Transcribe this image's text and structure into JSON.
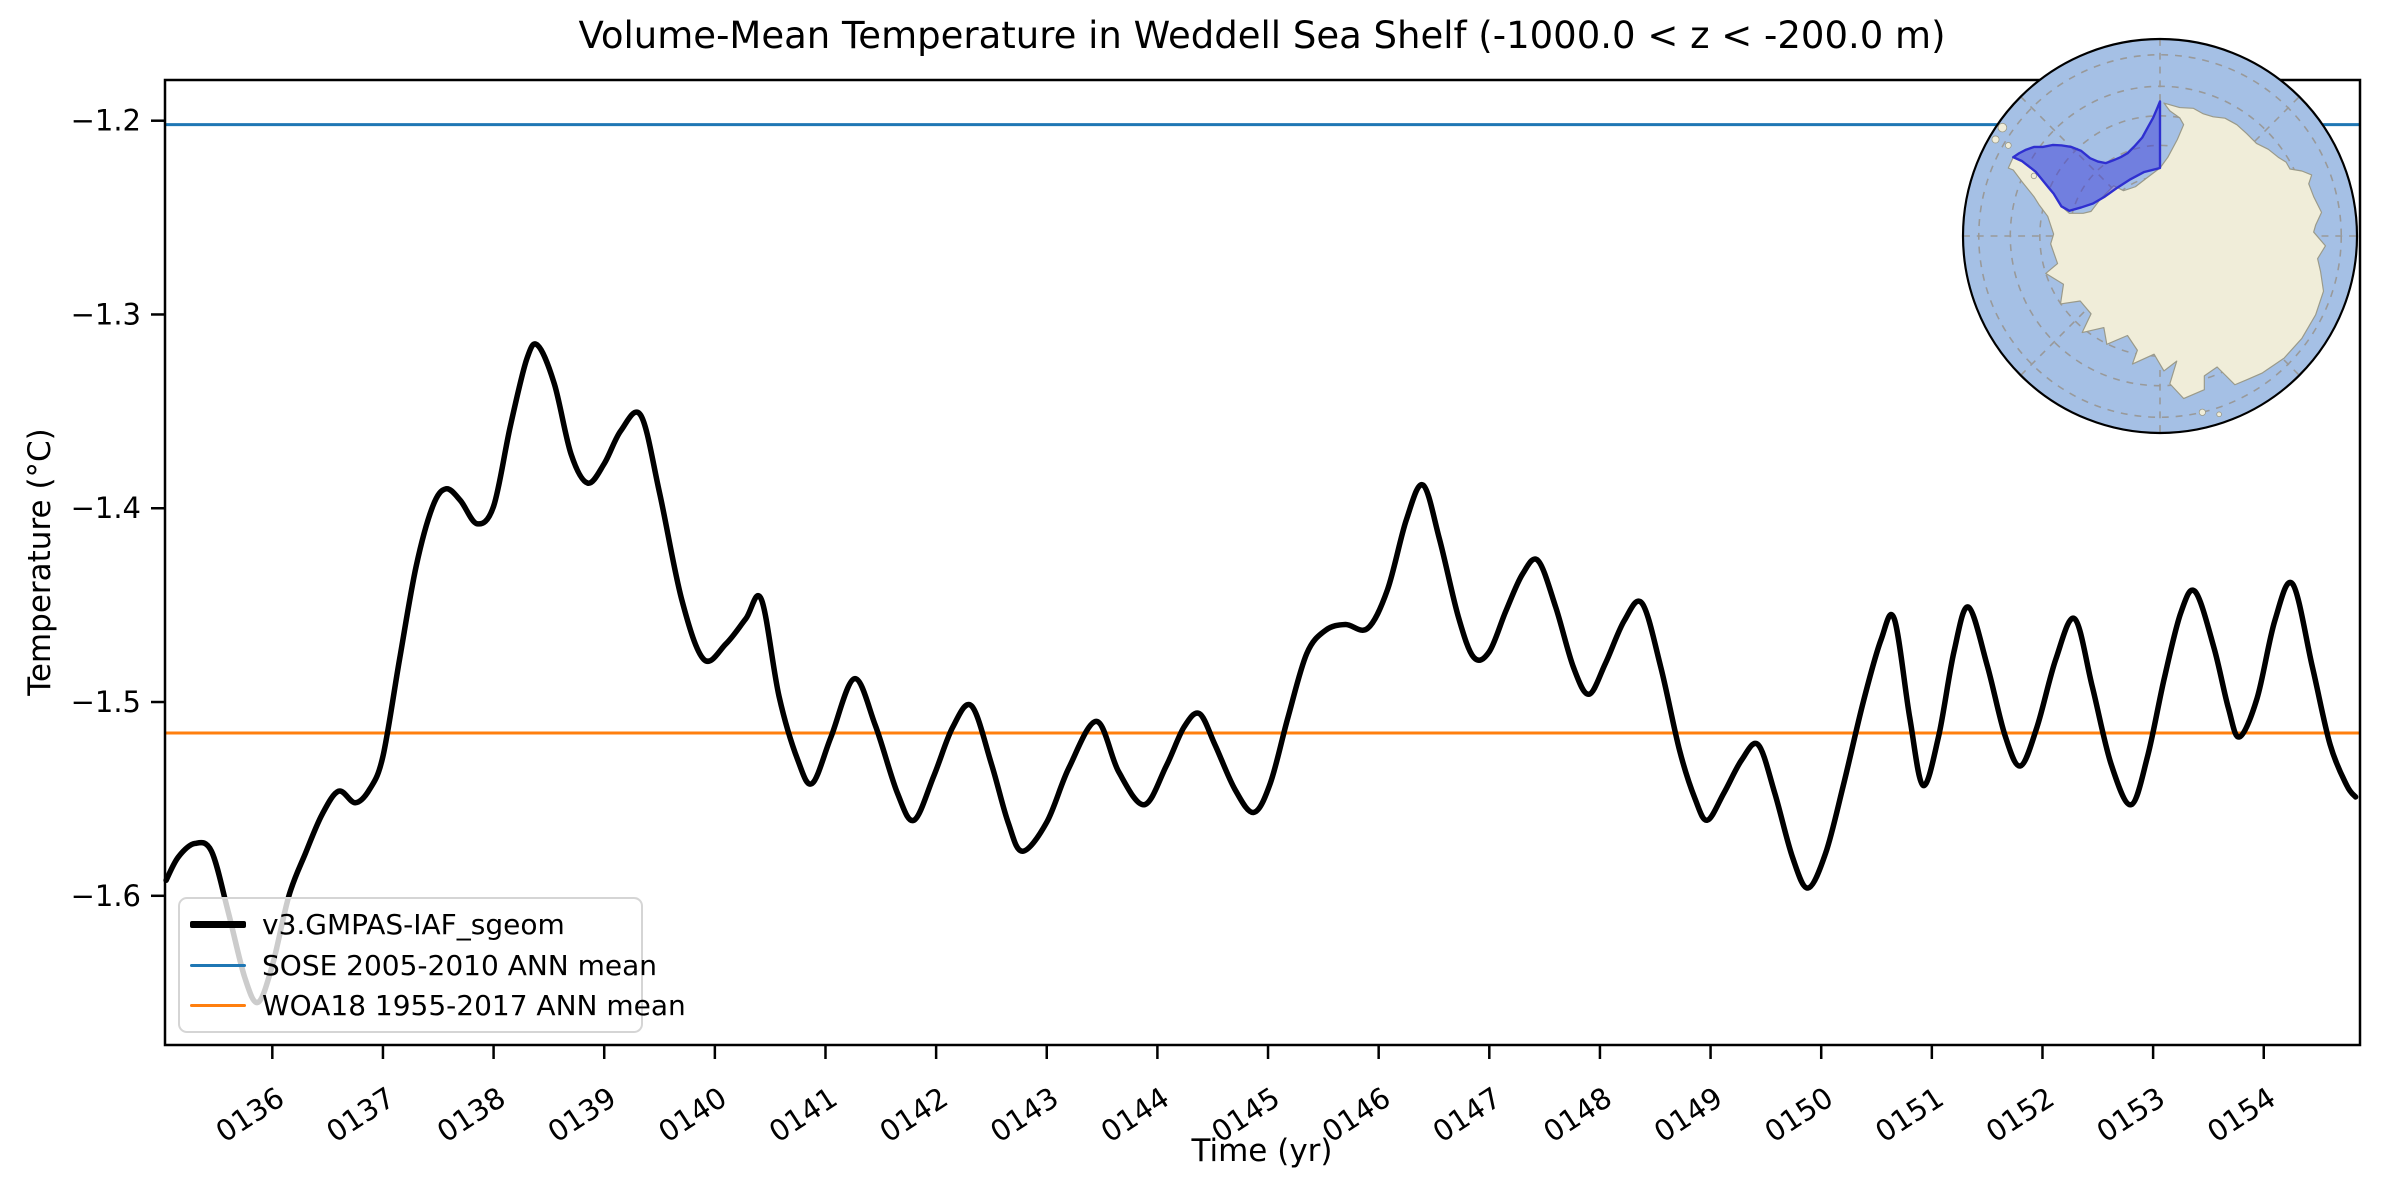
{
  "title": "Volume-Mean Temperature in Weddell Sea Shelf (-1000.0 < z < -200.0 m)",
  "axes": {
    "x": {
      "label": "Time (yr)",
      "tick_labels": [
        "0136",
        "0137",
        "0138",
        "0139",
        "0140",
        "0141",
        "0142",
        "0143",
        "0144",
        "0145",
        "0146",
        "0147",
        "0148",
        "0149",
        "0150",
        "0151",
        "0152",
        "0153",
        "0154"
      ],
      "tick_values": [
        136,
        137,
        138,
        139,
        140,
        141,
        142,
        143,
        144,
        145,
        146,
        147,
        148,
        149,
        150,
        151,
        152,
        153,
        154
      ]
    },
    "y": {
      "label": "Temperature (°C)",
      "tick_labels": [
        "−1.2",
        "−1.3",
        "−1.4",
        "−1.5",
        "−1.6"
      ],
      "tick_values": [
        -1.2,
        -1.3,
        -1.4,
        -1.5,
        -1.6
      ]
    }
  },
  "legend": {
    "items": [
      {
        "label": "v3.GMPAS-IAF_sgeom",
        "color": "#000000",
        "thickness": 7
      },
      {
        "label": "SOSE 2005-2010 ANN mean",
        "color": "#1f77b4",
        "thickness": 3
      },
      {
        "label": "WOA18 1955-2017 ANN mean",
        "color": "#ff7f0e",
        "thickness": 3
      }
    ]
  },
  "chart_data": {
    "type": "line",
    "title": "Volume-Mean Temperature in Weddell Sea Shelf (-1000.0 < z < -200.0 m)",
    "xlabel": "Time (yr)",
    "ylabel": "Temperature (°C)",
    "xlim": [
      135.03,
      154.87
    ],
    "ylim": [
      -1.677,
      -1.179
    ],
    "grid": false,
    "legend_position": "lower left",
    "series": [
      {
        "name": "v3.GMPAS-IAF_sgeom",
        "color": "#000000",
        "style": "curve",
        "points": [
          [
            135.04,
            -1.592
          ],
          [
            135.15,
            -1.58
          ],
          [
            135.3,
            -1.573
          ],
          [
            135.45,
            -1.577
          ],
          [
            135.6,
            -1.608
          ],
          [
            135.75,
            -1.642
          ],
          [
            135.87,
            -1.655
          ],
          [
            136.0,
            -1.636
          ],
          [
            136.15,
            -1.6
          ],
          [
            136.3,
            -1.578
          ],
          [
            136.45,
            -1.558
          ],
          [
            136.6,
            -1.546
          ],
          [
            136.75,
            -1.552
          ],
          [
            136.88,
            -1.545
          ],
          [
            137.0,
            -1.528
          ],
          [
            137.15,
            -1.478
          ],
          [
            137.3,
            -1.43
          ],
          [
            137.45,
            -1.399
          ],
          [
            137.57,
            -1.39
          ],
          [
            137.7,
            -1.396
          ],
          [
            137.85,
            -1.408
          ],
          [
            138.0,
            -1.399
          ],
          [
            138.15,
            -1.358
          ],
          [
            138.3,
            -1.323
          ],
          [
            138.4,
            -1.316
          ],
          [
            138.55,
            -1.336
          ],
          [
            138.7,
            -1.372
          ],
          [
            138.85,
            -1.387
          ],
          [
            139.0,
            -1.377
          ],
          [
            139.15,
            -1.36
          ],
          [
            139.33,
            -1.352
          ],
          [
            139.5,
            -1.392
          ],
          [
            139.7,
            -1.447
          ],
          [
            139.9,
            -1.478
          ],
          [
            140.1,
            -1.47
          ],
          [
            140.28,
            -1.457
          ],
          [
            140.42,
            -1.447
          ],
          [
            140.58,
            -1.497
          ],
          [
            140.75,
            -1.53
          ],
          [
            140.88,
            -1.542
          ],
          [
            141.05,
            -1.518
          ],
          [
            141.26,
            -1.488
          ],
          [
            141.45,
            -1.512
          ],
          [
            141.65,
            -1.547
          ],
          [
            141.8,
            -1.561
          ],
          [
            141.98,
            -1.538
          ],
          [
            142.15,
            -1.513
          ],
          [
            142.32,
            -1.502
          ],
          [
            142.5,
            -1.532
          ],
          [
            142.65,
            -1.562
          ],
          [
            142.78,
            -1.577
          ],
          [
            143.0,
            -1.562
          ],
          [
            143.2,
            -1.534
          ],
          [
            143.45,
            -1.51
          ],
          [
            143.65,
            -1.536
          ],
          [
            143.88,
            -1.553
          ],
          [
            144.08,
            -1.533
          ],
          [
            144.24,
            -1.513
          ],
          [
            144.38,
            -1.506
          ],
          [
            144.52,
            -1.522
          ],
          [
            144.7,
            -1.545
          ],
          [
            144.87,
            -1.557
          ],
          [
            145.02,
            -1.542
          ],
          [
            145.18,
            -1.508
          ],
          [
            145.35,
            -1.475
          ],
          [
            145.52,
            -1.463
          ],
          [
            145.7,
            -1.46
          ],
          [
            145.9,
            -1.462
          ],
          [
            146.08,
            -1.442
          ],
          [
            146.25,
            -1.406
          ],
          [
            146.4,
            -1.388
          ],
          [
            146.55,
            -1.416
          ],
          [
            146.72,
            -1.456
          ],
          [
            146.86,
            -1.477
          ],
          [
            147.0,
            -1.474
          ],
          [
            147.15,
            -1.453
          ],
          [
            147.3,
            -1.434
          ],
          [
            147.44,
            -1.427
          ],
          [
            147.6,
            -1.451
          ],
          [
            147.76,
            -1.482
          ],
          [
            147.9,
            -1.496
          ],
          [
            148.05,
            -1.48
          ],
          [
            148.22,
            -1.458
          ],
          [
            148.38,
            -1.449
          ],
          [
            148.55,
            -1.482
          ],
          [
            148.72,
            -1.525
          ],
          [
            148.86,
            -1.55
          ],
          [
            148.97,
            -1.561
          ],
          [
            149.12,
            -1.547
          ],
          [
            149.28,
            -1.53
          ],
          [
            149.43,
            -1.522
          ],
          [
            149.58,
            -1.547
          ],
          [
            149.74,
            -1.58
          ],
          [
            149.88,
            -1.596
          ],
          [
            150.04,
            -1.578
          ],
          [
            150.2,
            -1.543
          ],
          [
            150.38,
            -1.5
          ],
          [
            150.54,
            -1.468
          ],
          [
            150.66,
            -1.457
          ],
          [
            150.8,
            -1.508
          ],
          [
            150.92,
            -1.543
          ],
          [
            151.06,
            -1.518
          ],
          [
            151.2,
            -1.474
          ],
          [
            151.33,
            -1.451
          ],
          [
            151.5,
            -1.481
          ],
          [
            151.66,
            -1.517
          ],
          [
            151.8,
            -1.533
          ],
          [
            151.95,
            -1.513
          ],
          [
            152.12,
            -1.478
          ],
          [
            152.29,
            -1.457
          ],
          [
            152.45,
            -1.492
          ],
          [
            152.62,
            -1.532
          ],
          [
            152.8,
            -1.553
          ],
          [
            152.95,
            -1.528
          ],
          [
            153.1,
            -1.488
          ],
          [
            153.25,
            -1.454
          ],
          [
            153.38,
            -1.443
          ],
          [
            153.55,
            -1.472
          ],
          [
            153.68,
            -1.503
          ],
          [
            153.78,
            -1.518
          ],
          [
            153.94,
            -1.498
          ],
          [
            154.1,
            -1.458
          ],
          [
            154.26,
            -1.439
          ],
          [
            154.44,
            -1.482
          ],
          [
            154.6,
            -1.522
          ],
          [
            154.75,
            -1.543
          ],
          [
            154.83,
            -1.549
          ]
        ]
      },
      {
        "name": "SOSE 2005-2010 ANN mean",
        "color": "#1f77b4",
        "style": "hline",
        "y": -1.202
      },
      {
        "name": "WOA18 1955-2017 ANN mean",
        "color": "#ff7f0e",
        "style": "hline",
        "y": -1.516
      }
    ]
  },
  "inset_map": {
    "ocean_color": "#a5c0e5",
    "land_color": "#f0edd9",
    "coast_color": "#9a9a8a",
    "graticule_color": "#999999",
    "highlight_fill": "rgba(62,62,218,0.5)",
    "highlight_edge": "#2f2fd0"
  }
}
